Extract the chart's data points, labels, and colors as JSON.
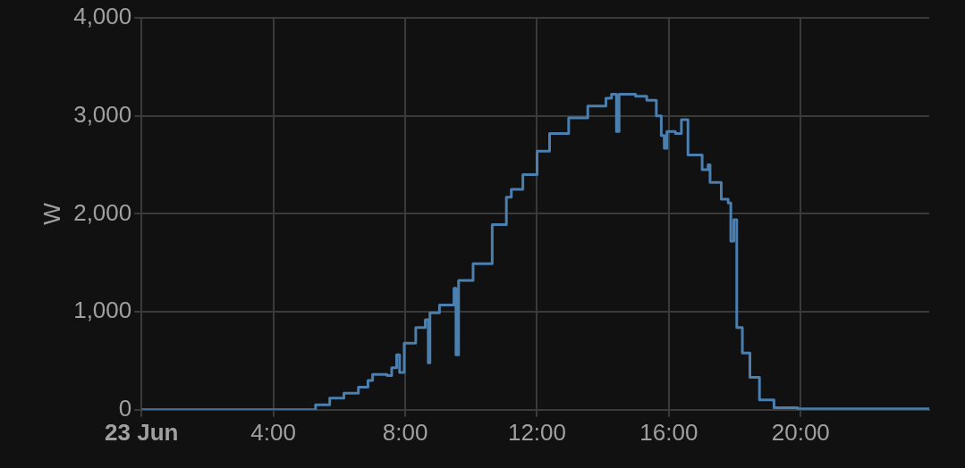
{
  "chart_data": {
    "type": "step",
    "ylabel": "W",
    "xlim": [
      0,
      23.9
    ],
    "ylim": [
      0,
      4000
    ],
    "xticks": [
      {
        "value": 0,
        "label": "23 Jun"
      },
      {
        "value": 4,
        "label": "4:00"
      },
      {
        "value": 8,
        "label": "8:00"
      },
      {
        "value": 12,
        "label": "12:00"
      },
      {
        "value": 16,
        "label": "16:00"
      },
      {
        "value": 20,
        "label": "20:00"
      }
    ],
    "yticks": [
      {
        "value": 0,
        "label": "0"
      },
      {
        "value": 1000,
        "label": "1,000"
      },
      {
        "value": 2000,
        "label": "2,000"
      },
      {
        "value": 3000,
        "label": "3,000"
      },
      {
        "value": 4000,
        "label": "4,000"
      }
    ],
    "grid": true,
    "legend": false,
    "marker": "none",
    "line_style": "solid",
    "series": [
      {
        "color": "#4a7fb0",
        "x": [
          0,
          4.84,
          5.28,
          5.71,
          6.14,
          6.58,
          6.87,
          7.01,
          7.45,
          7.59,
          7.74,
          7.83,
          7.97,
          8.32,
          8.61,
          8.7,
          8.75,
          9.04,
          9.48,
          9.54,
          9.62,
          10.06,
          10.64,
          11.07,
          11.22,
          11.57,
          12.0,
          12.38,
          12.96,
          13.54,
          14.09,
          14.26,
          14.41,
          14.49,
          14.99,
          15.33,
          15.62,
          15.77,
          15.86,
          15.94,
          16.2,
          16.38,
          16.58,
          17.01,
          17.19,
          17.25,
          17.59,
          17.8,
          17.88,
          17.97,
          18.06,
          18.23,
          18.46,
          18.75,
          19.19,
          19.91,
          23.9
        ],
        "values": [
          0,
          0,
          50,
          120,
          170,
          230,
          300,
          360,
          350,
          430,
          560,
          380,
          680,
          840,
          920,
          480,
          990,
          1070,
          1240,
          560,
          1320,
          1490,
          1890,
          2170,
          2250,
          2400,
          2640,
          2820,
          2980,
          3100,
          3180,
          3220,
          2840,
          3220,
          3200,
          3160,
          3000,
          2800,
          2670,
          2840,
          2820,
          2960,
          2600,
          2450,
          2500,
          2320,
          2150,
          2110,
          1720,
          1940,
          840,
          580,
          330,
          100,
          20,
          10,
          0
        ]
      }
    ]
  }
}
